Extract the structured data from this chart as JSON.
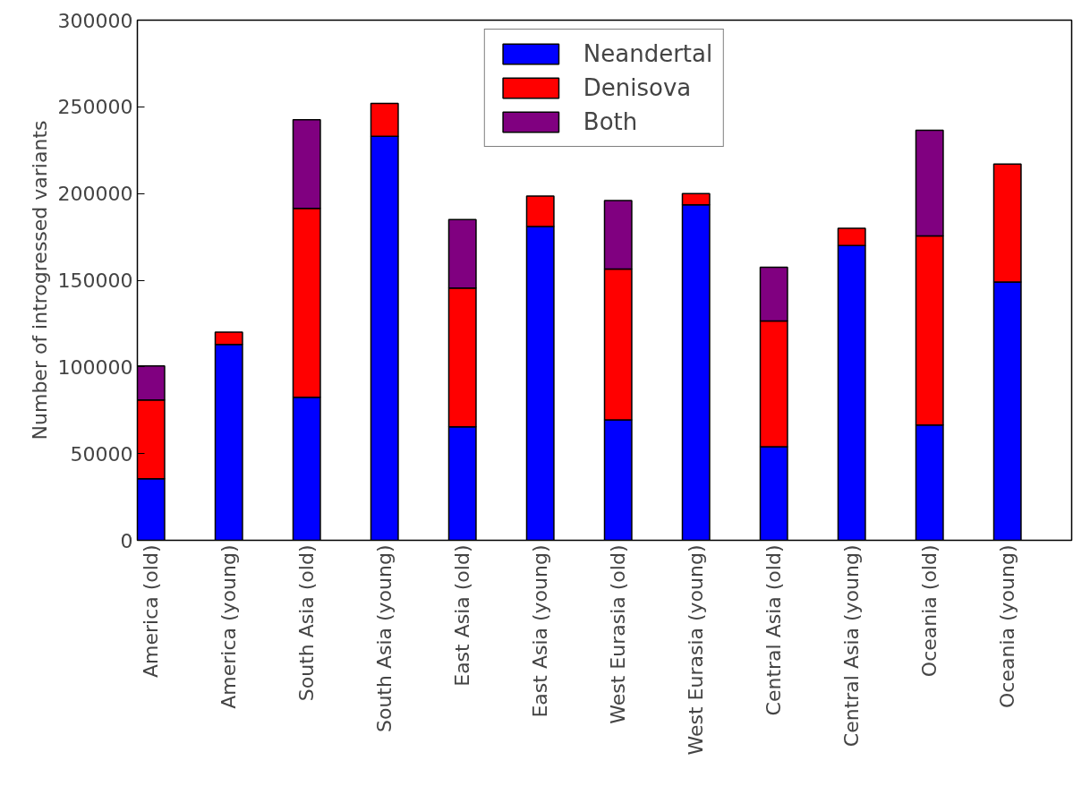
{
  "chart_data": {
    "type": "bar",
    "stacked": true,
    "ylabel": "Number of introgressed variants",
    "categories": [
      "America (old)",
      "America (young)",
      "South Asia (old)",
      "South Asia (young)",
      "East Asia (old)",
      "East Asia (young)",
      "West Eurasia (old)",
      "West Eurasia (young)",
      "Central Asia (old)",
      "Central Asia (young)",
      "Oceania (old)",
      "Oceania (young)"
    ],
    "series": [
      {
        "name": "Neandertal",
        "color": "#0000ff",
        "values": [
          35500,
          113000,
          82500,
          233000,
          65500,
          181000,
          69500,
          193500,
          54000,
          170000,
          66500,
          149000
        ]
      },
      {
        "name": "Denisova",
        "color": "#ff0000",
        "values": [
          45500,
          7000,
          109000,
          19000,
          80000,
          17500,
          87000,
          6500,
          72500,
          10000,
          109000,
          68000
        ]
      },
      {
        "name": "Both",
        "color": "#800080",
        "values": [
          19500,
          null,
          51000,
          null,
          39500,
          null,
          39500,
          null,
          31000,
          null,
          61000,
          null
        ]
      }
    ],
    "ylim": [
      0,
      300000
    ],
    "yticks": [
      0,
      50000,
      100000,
      150000,
      200000,
      250000,
      300000
    ],
    "grid": false,
    "legend": "top"
  }
}
